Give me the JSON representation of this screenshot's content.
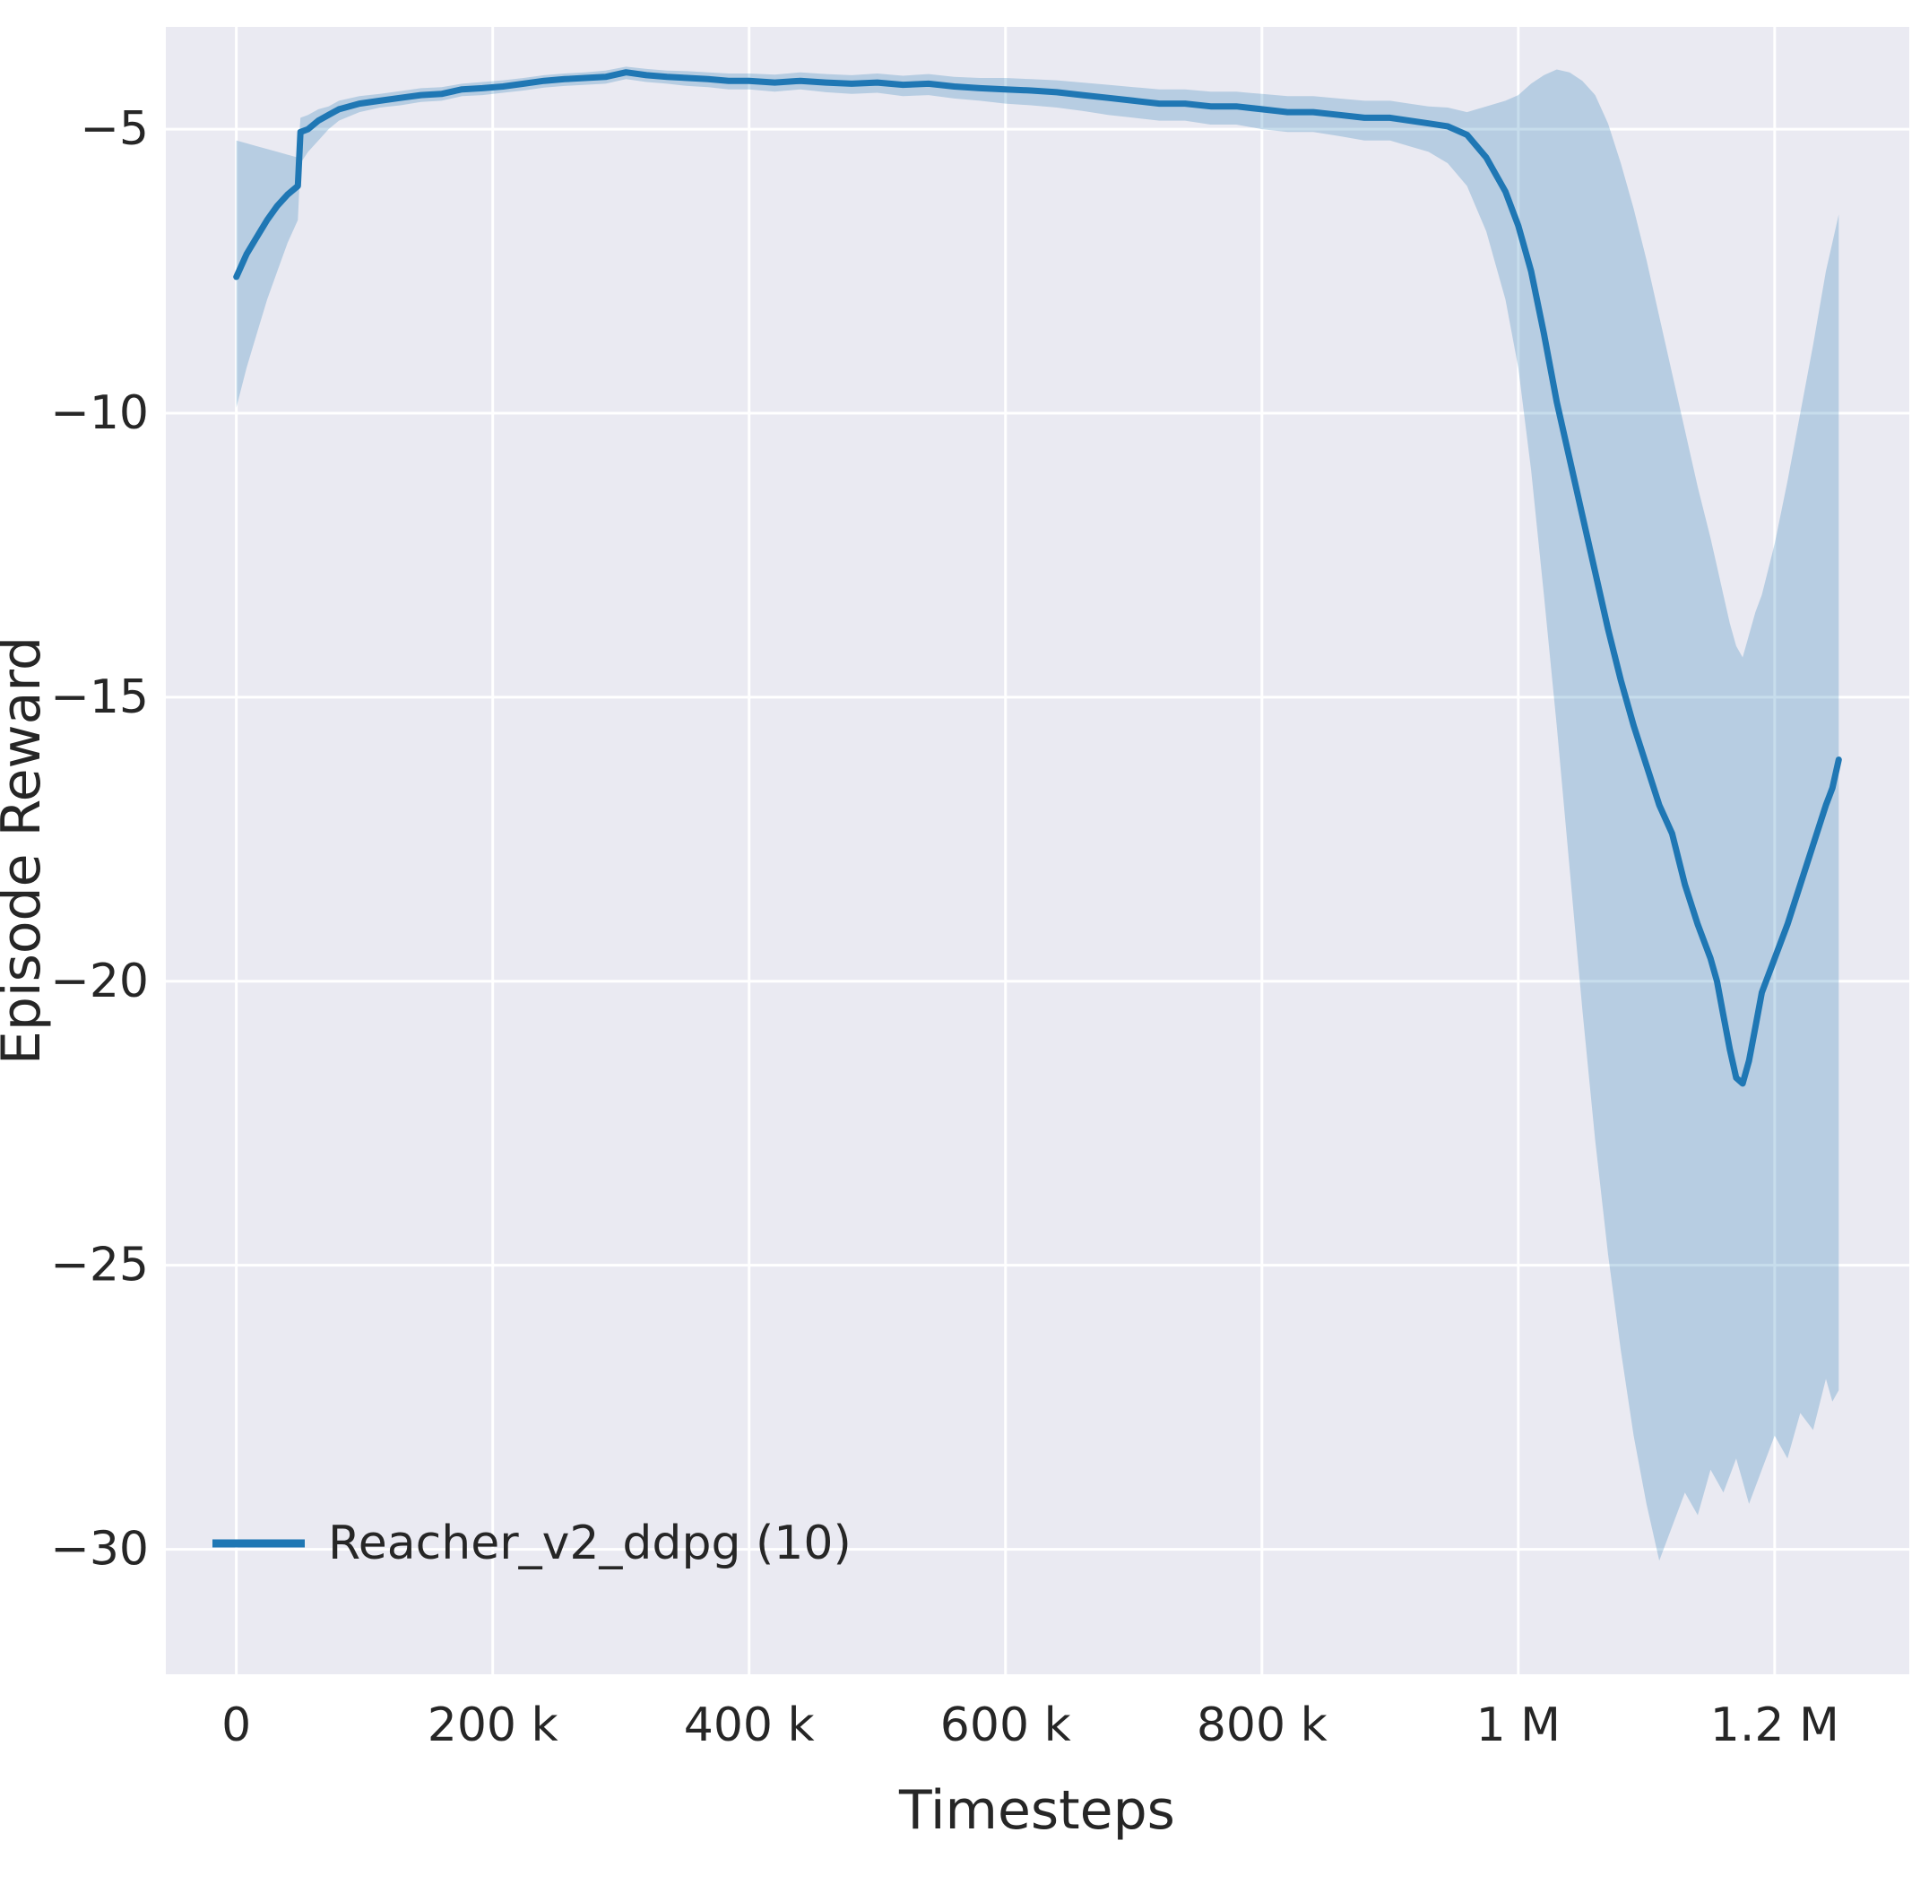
{
  "colors": {
    "figure_background": "#ffffff",
    "axes_background": "#eaeaf2",
    "grid": "#ffffff",
    "line": "#1f77b4",
    "band": "#1f77b4",
    "text": "#262626"
  },
  "chart_data": {
    "type": "line",
    "title": "",
    "xlabel": "Timesteps",
    "ylabel": "Episode Reward",
    "x_units": "x values are thousands of timesteps",
    "xlim": [
      -55,
      1305
    ],
    "ylim": [
      -32.2,
      -3.2
    ],
    "grid": true,
    "x_ticks": [
      {
        "value": 0,
        "label": "0"
      },
      {
        "value": 200,
        "label": "200 k"
      },
      {
        "value": 400,
        "label": "400 k"
      },
      {
        "value": 600,
        "label": "600 k"
      },
      {
        "value": 800,
        "label": "800 k"
      },
      {
        "value": 1000,
        "label": "1 M"
      },
      {
        "value": 1200,
        "label": "1.2 M"
      }
    ],
    "y_ticks": [
      {
        "value": -5,
        "label": "−5"
      },
      {
        "value": -10,
        "label": "−10"
      },
      {
        "value": -15,
        "label": "−15"
      },
      {
        "value": -20,
        "label": "−20"
      },
      {
        "value": -25,
        "label": "−25"
      },
      {
        "value": -30,
        "label": "−30"
      }
    ],
    "legend": {
      "position": "lower left",
      "entries": [
        {
          "label": "Reacher_v2_ddpg (10)",
          "color": "#1f77b4"
        }
      ]
    },
    "series": [
      {
        "name": "Reacher_v2_ddpg (10)",
        "color": "#1f77b4",
        "band_opacity": 0.25,
        "points_format": [
          "x_thousands",
          "mean",
          "band_lower",
          "band_upper"
        ],
        "points": [
          [
            0,
            -7.6,
            -9.9,
            -5.2
          ],
          [
            8,
            -7.2,
            -9.2,
            -5.25
          ],
          [
            16,
            -6.9,
            -8.6,
            -5.3
          ],
          [
            24,
            -6.6,
            -8.0,
            -5.35
          ],
          [
            32,
            -6.35,
            -7.5,
            -5.4
          ],
          [
            40,
            -6.15,
            -7.0,
            -5.45
          ],
          [
            48,
            -6.0,
            -6.6,
            -5.5
          ],
          [
            50,
            -5.05,
            -5.6,
            -4.8
          ],
          [
            56,
            -5.0,
            -5.4,
            -4.75
          ],
          [
            64,
            -4.85,
            -5.2,
            -4.65
          ],
          [
            72,
            -4.75,
            -5.0,
            -4.6
          ],
          [
            80,
            -4.65,
            -4.85,
            -4.5
          ],
          [
            96,
            -4.55,
            -4.7,
            -4.42
          ],
          [
            112,
            -4.5,
            -4.62,
            -4.38
          ],
          [
            128,
            -4.45,
            -4.58,
            -4.33
          ],
          [
            144,
            -4.4,
            -4.52,
            -4.28
          ],
          [
            160,
            -4.38,
            -4.5,
            -4.26
          ],
          [
            176,
            -4.3,
            -4.42,
            -4.2
          ],
          [
            192,
            -4.28,
            -4.4,
            -4.17
          ],
          [
            208,
            -4.25,
            -4.36,
            -4.14
          ],
          [
            224,
            -4.2,
            -4.32,
            -4.1
          ],
          [
            240,
            -4.15,
            -4.27,
            -4.05
          ],
          [
            256,
            -4.12,
            -4.24,
            -4.02
          ],
          [
            272,
            -4.1,
            -4.22,
            -4.0
          ],
          [
            288,
            -4.08,
            -4.2,
            -3.97
          ],
          [
            304,
            -4.0,
            -4.12,
            -3.9
          ],
          [
            320,
            -4.05,
            -4.17,
            -3.94
          ],
          [
            336,
            -4.08,
            -4.2,
            -3.97
          ],
          [
            352,
            -4.1,
            -4.24,
            -3.98
          ],
          [
            368,
            -4.12,
            -4.26,
            -4.0
          ],
          [
            384,
            -4.15,
            -4.3,
            -4.02
          ],
          [
            400,
            -4.15,
            -4.3,
            -4.02
          ],
          [
            420,
            -4.18,
            -4.34,
            -4.04
          ],
          [
            440,
            -4.15,
            -4.3,
            -4.0
          ],
          [
            460,
            -4.18,
            -4.35,
            -4.03
          ],
          [
            480,
            -4.2,
            -4.38,
            -4.05
          ],
          [
            500,
            -4.18,
            -4.36,
            -4.02
          ],
          [
            520,
            -4.22,
            -4.42,
            -4.06
          ],
          [
            540,
            -4.2,
            -4.4,
            -4.03
          ],
          [
            560,
            -4.25,
            -4.46,
            -4.08
          ],
          [
            580,
            -4.28,
            -4.5,
            -4.1
          ],
          [
            600,
            -4.3,
            -4.55,
            -4.1
          ],
          [
            620,
            -4.32,
            -4.58,
            -4.12
          ],
          [
            640,
            -4.35,
            -4.62,
            -4.14
          ],
          [
            660,
            -4.4,
            -4.68,
            -4.18
          ],
          [
            680,
            -4.45,
            -4.75,
            -4.22
          ],
          [
            700,
            -4.5,
            -4.8,
            -4.26
          ],
          [
            720,
            -4.55,
            -4.85,
            -4.3
          ],
          [
            740,
            -4.55,
            -4.85,
            -4.3
          ],
          [
            760,
            -4.6,
            -4.92,
            -4.34
          ],
          [
            780,
            -4.6,
            -4.92,
            -4.34
          ],
          [
            800,
            -4.65,
            -5.0,
            -4.38
          ],
          [
            820,
            -4.7,
            -5.05,
            -4.42
          ],
          [
            840,
            -4.7,
            -5.05,
            -4.42
          ],
          [
            860,
            -4.75,
            -5.12,
            -4.46
          ],
          [
            880,
            -4.8,
            -5.2,
            -4.5
          ],
          [
            900,
            -4.8,
            -5.2,
            -4.5
          ],
          [
            915,
            -4.85,
            -5.3,
            -4.55
          ],
          [
            930,
            -4.9,
            -5.4,
            -4.6
          ],
          [
            945,
            -4.95,
            -5.6,
            -4.62
          ],
          [
            960,
            -5.1,
            -6.0,
            -4.7
          ],
          [
            975,
            -5.5,
            -6.8,
            -4.6
          ],
          [
            990,
            -6.1,
            -8.0,
            -4.5
          ],
          [
            1000,
            -6.7,
            -9.2,
            -4.4
          ],
          [
            1010,
            -7.5,
            -11.0,
            -4.2
          ],
          [
            1020,
            -8.6,
            -13.2,
            -4.05
          ],
          [
            1030,
            -9.8,
            -15.5,
            -3.95
          ],
          [
            1040,
            -10.8,
            -18.0,
            -4.0
          ],
          [
            1050,
            -11.8,
            -20.5,
            -4.15
          ],
          [
            1060,
            -12.8,
            -22.8,
            -4.4
          ],
          [
            1070,
            -13.8,
            -24.8,
            -4.9
          ],
          [
            1080,
            -14.7,
            -26.5,
            -5.6
          ],
          [
            1090,
            -15.5,
            -28.0,
            -6.4
          ],
          [
            1100,
            -16.2,
            -29.2,
            -7.3
          ],
          [
            1110,
            -16.9,
            -30.2,
            -8.3
          ],
          [
            1120,
            -17.4,
            -29.6,
            -9.3
          ],
          [
            1130,
            -18.3,
            -29.0,
            -10.3
          ],
          [
            1140,
            -19.0,
            -29.4,
            -11.3
          ],
          [
            1150,
            -19.6,
            -28.6,
            -12.2
          ],
          [
            1155,
            -20.0,
            -28.8,
            -12.7
          ],
          [
            1160,
            -20.6,
            -29.0,
            -13.2
          ],
          [
            1165,
            -21.2,
            -28.7,
            -13.7
          ],
          [
            1170,
            -21.7,
            -28.4,
            -14.1
          ],
          [
            1175,
            -21.8,
            -28.8,
            -14.3
          ],
          [
            1180,
            -21.4,
            -29.2,
            -13.9
          ],
          [
            1185,
            -20.8,
            -28.9,
            -13.5
          ],
          [
            1190,
            -20.2,
            -28.6,
            -13.2
          ],
          [
            1200,
            -19.6,
            -28.0,
            -12.3
          ],
          [
            1210,
            -19.0,
            -28.4,
            -11.2
          ],
          [
            1220,
            -18.3,
            -27.6,
            -10.0
          ],
          [
            1230,
            -17.6,
            -27.9,
            -8.8
          ],
          [
            1240,
            -16.9,
            -27.0,
            -7.5
          ],
          [
            1245,
            -16.6,
            -27.4,
            -7.0
          ],
          [
            1250,
            -16.1,
            -27.2,
            -6.5
          ]
        ]
      }
    ]
  }
}
